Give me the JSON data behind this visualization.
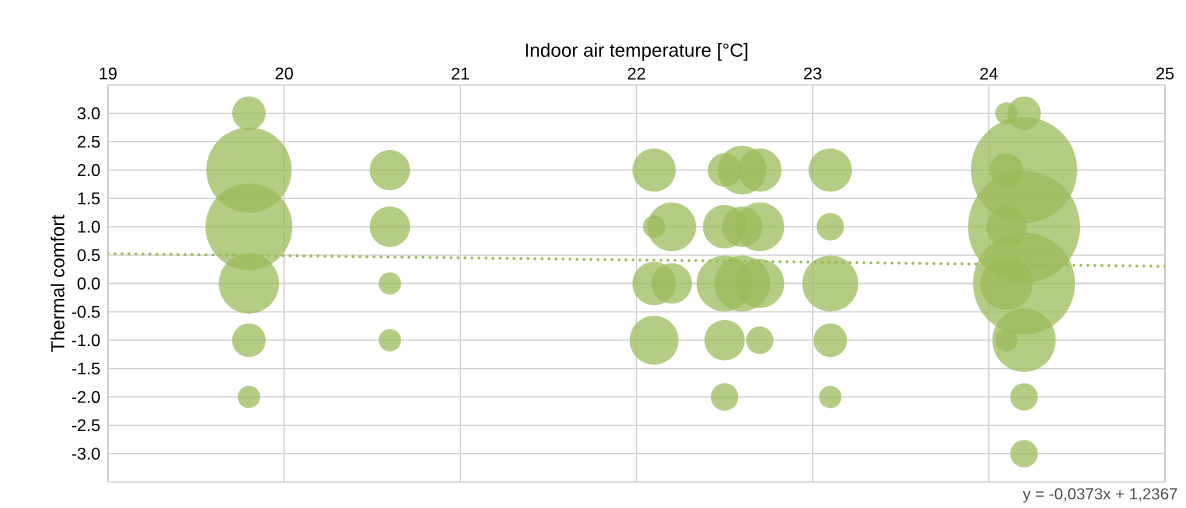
{
  "chart_data": {
    "type": "bubble",
    "xlabel": "Indoor air temperature [°C]",
    "ylabel": "Thermal comfort",
    "xlim": [
      19,
      25
    ],
    "xticks": [
      19,
      20,
      21,
      22,
      23,
      24,
      25
    ],
    "ylim": [
      -3.5,
      3.5
    ],
    "yticks": [
      {
        "value": 3,
        "label": "3.0"
      },
      {
        "value": 2.5,
        "label": "2.5"
      },
      {
        "value": 2,
        "label": "2.0"
      },
      {
        "value": 1.5,
        "label": "1.5"
      },
      {
        "value": 1,
        "label": "1.0"
      },
      {
        "value": 0.5,
        "label": "0.5"
      },
      {
        "value": 0,
        "label": "0.0"
      },
      {
        "value": -0.5,
        "label": "-0.5"
      },
      {
        "value": -1,
        "label": "-1.0"
      },
      {
        "value": -1.5,
        "label": "-1.5"
      },
      {
        "value": -2,
        "label": "-2.0"
      },
      {
        "value": -2.5,
        "label": "-2.5"
      },
      {
        "value": -3,
        "label": "-3.0"
      }
    ],
    "grid": true,
    "annotations": [
      "y = -0,0373x + 1,2367"
    ],
    "series": [
      {
        "type": "bubble",
        "color": "#9bbb59",
        "x": [
          19.8,
          19.8,
          19.8,
          19.8,
          19.8,
          19.8,
          20.6,
          20.6,
          20.6,
          20.6,
          22.1,
          22.1,
          22.1,
          22.1,
          22.2,
          22.2,
          22.5,
          22.5,
          22.5,
          22.5,
          22.5,
          22.6,
          22.6,
          22.6,
          22.7,
          22.7,
          22.7,
          22.7,
          23.1,
          23.1,
          23.1,
          23.1,
          23.1,
          24.1,
          24.1,
          24.1,
          24.1,
          24.1,
          24.2,
          24.2,
          24.2,
          24.2,
          24.2,
          24.2,
          24.2
        ],
        "values": [
          3,
          2,
          1,
          0,
          -1,
          -2,
          2,
          1,
          0,
          -1,
          2,
          1,
          0,
          -1,
          1,
          0,
          2,
          1,
          0,
          -1,
          -2,
          2,
          1,
          0,
          2,
          1,
          0,
          -1,
          2,
          1,
          0,
          -1,
          -2,
          3,
          2,
          1,
          0,
          -1,
          3,
          2,
          0,
          -1,
          -2,
          -3,
          1
        ],
        "sizes": [
          0.09,
          0.58,
          0.6,
          0.29,
          0.09,
          0.04,
          0.13,
          0.13,
          0.04,
          0.04,
          0.15,
          0.04,
          0.15,
          0.19,
          0.19,
          0.13,
          0.09,
          0.15,
          0.25,
          0.13,
          0.06,
          0.19,
          0.13,
          0.25,
          0.15,
          0.19,
          0.19,
          0.06,
          0.15,
          0.06,
          0.25,
          0.09,
          0.04,
          0.04,
          0.09,
          0.13,
          0.22,
          0.04,
          0.09,
          0.9,
          0.83,
          0.32,
          0.06,
          0.06,
          1
        ]
      },
      {
        "type": "line",
        "color": "#9bbb59",
        "line_style": "dotted",
        "x": [
          19,
          25
        ],
        "values": [
          0.528,
          0.304
        ]
      }
    ]
  }
}
